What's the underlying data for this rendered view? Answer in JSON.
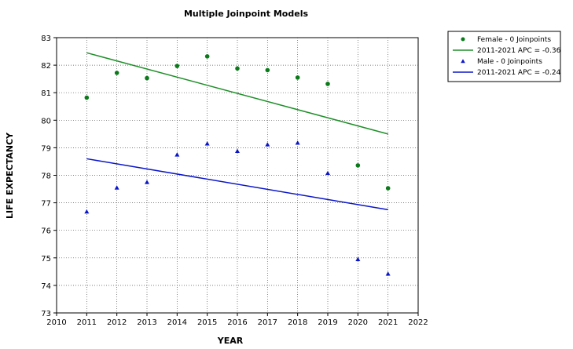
{
  "chart_data": {
    "type": "scatter",
    "title": "Multiple Joinpoint Models",
    "xlabel": "YEAR",
    "ylabel": "LIFE EXPECTANCY",
    "xlim": [
      2010,
      2022
    ],
    "ylim": [
      73,
      83
    ],
    "xticks": [
      "2010",
      "2011",
      "2012",
      "2013",
      "2014",
      "2015",
      "2016",
      "2017",
      "2018",
      "2019",
      "2020",
      "2021",
      "2022"
    ],
    "yticks": [
      "73",
      "74",
      "75",
      "76",
      "77",
      "78",
      "79",
      "80",
      "81",
      "82",
      "83"
    ],
    "grid": true,
    "legend_position": "top-right outside",
    "series": [
      {
        "name": "Female - 0 Joinpoints",
        "kind": "points",
        "marker": "circle",
        "color": "#0b7a1a",
        "x": [
          2011,
          2012,
          2013,
          2014,
          2015,
          2016,
          2017,
          2018,
          2019,
          2020,
          2021
        ],
        "y": [
          80.82,
          81.72,
          81.53,
          81.97,
          82.32,
          81.88,
          81.82,
          81.55,
          81.32,
          78.36,
          77.53
        ]
      },
      {
        "name": "2011-2021 APC = -0.36",
        "kind": "line",
        "color": "#1f8f2a",
        "x": [
          2011,
          2021
        ],
        "y": [
          82.45,
          79.5
        ]
      },
      {
        "name": "Male - 0 Joinpoints",
        "kind": "points",
        "marker": "triangle",
        "color": "#0b16c8",
        "x": [
          2011,
          2012,
          2013,
          2014,
          2015,
          2016,
          2017,
          2018,
          2019,
          2020,
          2021
        ],
        "y": [
          76.68,
          77.55,
          77.75,
          78.75,
          79.15,
          78.88,
          79.12,
          79.18,
          78.08,
          74.95,
          74.42
        ]
      },
      {
        "name": "2011-2021 APC = -0.24",
        "kind": "line",
        "color": "#0b16c8",
        "x": [
          2011,
          2021
        ],
        "y": [
          78.6,
          76.75
        ]
      }
    ]
  }
}
